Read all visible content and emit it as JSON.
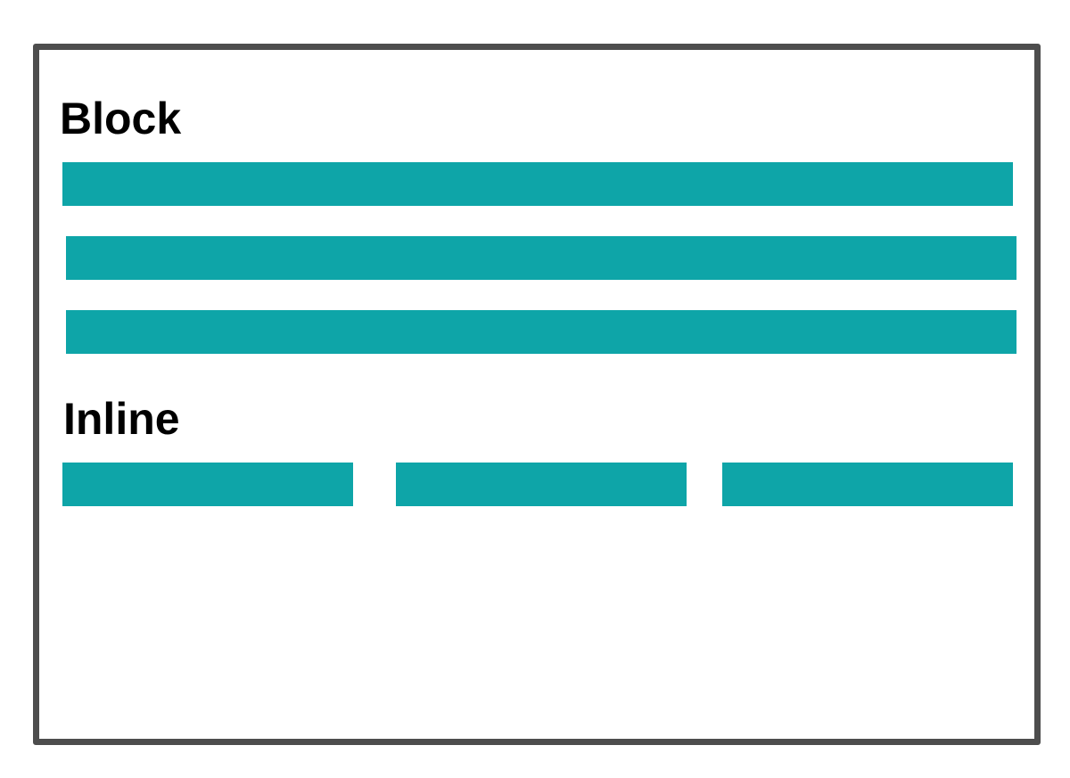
{
  "sections": {
    "block": {
      "title": "Block",
      "box_count": 3
    },
    "inline": {
      "title": "Inline",
      "box_count": 3
    }
  },
  "colors": {
    "box": "#0ea5a8",
    "frame_border": "#4d4d4d",
    "text": "#000000",
    "background": "#ffffff"
  }
}
